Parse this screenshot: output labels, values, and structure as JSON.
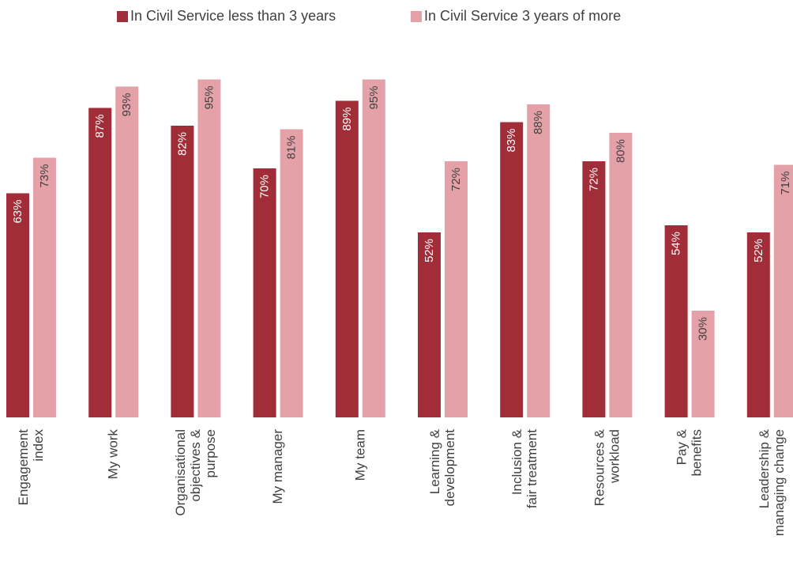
{
  "colors": {
    "series1": "#a12d38",
    "series2": "#e4a2a8",
    "text": "#404040"
  },
  "chart_data": {
    "type": "bar",
    "title": "",
    "xlabel": "",
    "ylabel": "",
    "ylim": [
      0,
      100
    ],
    "grid": false,
    "legend_position": "top",
    "categories": [
      [
        "Engagement",
        "index"
      ],
      [
        "My work"
      ],
      [
        "Organisational",
        "objectives &",
        "purpose"
      ],
      [
        "My manager"
      ],
      [
        "My team"
      ],
      [
        "Learning &",
        "development"
      ],
      [
        "Inclusion &",
        "fair treatment"
      ],
      [
        "Resources &",
        "workload"
      ],
      [
        "Pay &",
        "benefits"
      ],
      [
        "Leadership &",
        "managing change"
      ]
    ],
    "series": [
      {
        "name": "In Civil Service less than 3 years",
        "values": [
          63,
          87,
          82,
          70,
          89,
          52,
          83,
          72,
          54,
          52
        ]
      },
      {
        "name": "In Civil Service 3 years of more",
        "values": [
          73,
          93,
          95,
          81,
          95,
          72,
          88,
          80,
          30,
          71
        ]
      }
    ],
    "value_labels": [
      [
        "63%",
        "87%",
        "82%",
        "70%",
        "89%",
        "52%",
        "83%",
        "72%",
        "54%",
        "52%"
      ],
      [
        "73%",
        "93%",
        "95%",
        "81%",
        "95%",
        "72%",
        "88%",
        "80%",
        "30%",
        "71%"
      ]
    ]
  }
}
